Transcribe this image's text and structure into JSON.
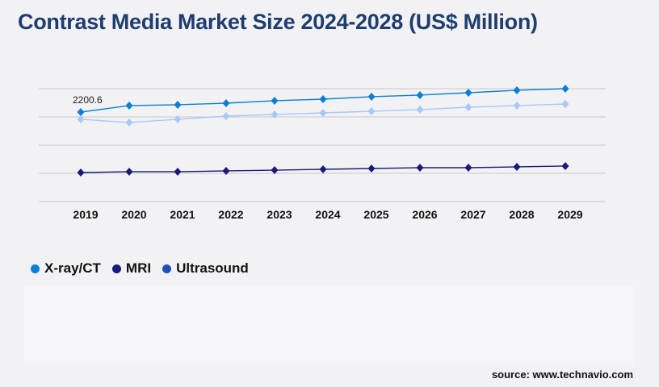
{
  "title": "Contrast Media Market Size 2024-2028 (US$ Million)",
  "source": "source: www.technavio.com",
  "chart_data": {
    "type": "line",
    "title": "Contrast Media Market Size 2024-2028 (US$ Million)",
    "categories": [
      "2019",
      "2020",
      "2021",
      "2022",
      "2023",
      "2024",
      "2025",
      "2026",
      "2027",
      "2028",
      "2029"
    ],
    "ylim": [
      0,
      2776
    ],
    "grid": true,
    "legend_position": "bottom-left",
    "series": [
      {
        "name": "X-ray/CT",
        "color": "#0a7fd4",
        "legend_color": "#0a7fd4",
        "values": [
          2200.6,
          2360,
          2380,
          2419,
          2479,
          2518,
          2578,
          2618,
          2677,
          2737,
          2776
        ]
      },
      {
        "name": "MRI",
        "color": "#1b1a78",
        "legend_color": "#1b1a78",
        "values": [
          714,
          734,
          734,
          754,
          773,
          793,
          813,
          833,
          833,
          853,
          873
        ]
      },
      {
        "name": "Ultrasound",
        "color": "#a8c8f8",
        "legend_color": "#1f4fb0",
        "values": [
          2023,
          1943,
          2023,
          2102,
          2142,
          2181,
          2221,
          2261,
          2320,
          2360,
          2399
        ]
      }
    ],
    "annotations": [
      {
        "series": "X-ray/CT",
        "category": "2019",
        "text": "2200.6"
      }
    ]
  }
}
